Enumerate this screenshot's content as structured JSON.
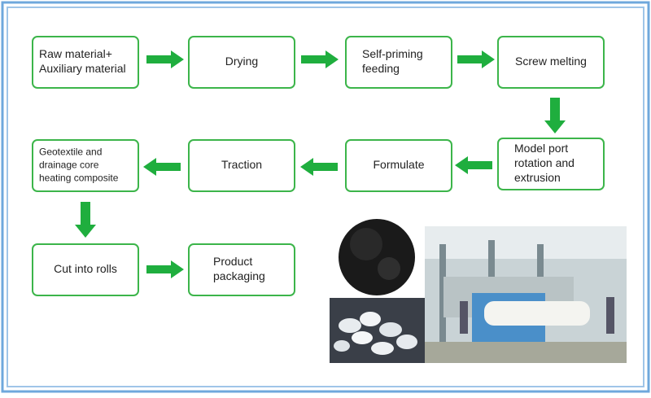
{
  "nodes": [
    {
      "lines": [
        "Raw material+",
        "Auxiliary material"
      ]
    },
    {
      "lines": [
        "Drying"
      ]
    },
    {
      "lines": [
        "Self-priming",
        "feeding"
      ]
    },
    {
      "lines": [
        "Screw melting"
      ]
    },
    {
      "lines": [
        "Model port",
        "rotation and",
        "extrusion"
      ]
    },
    {
      "lines": [
        "Formulate"
      ]
    },
    {
      "lines": [
        "Traction"
      ]
    },
    {
      "lines": [
        "Geotextile and",
        "drainage core",
        "heating composite"
      ]
    },
    {
      "lines": [
        "Cut into rolls"
      ]
    },
    {
      "lines": [
        "Product",
        "packaging"
      ]
    }
  ]
}
